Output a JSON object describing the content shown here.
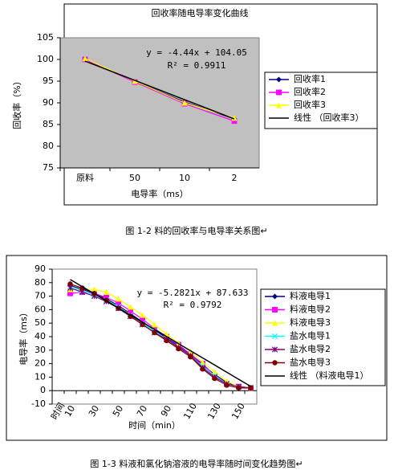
{
  "chart_data": [
    {
      "type": "line",
      "title": "回收率随电导率变化曲线",
      "xlabel": "电导率（ms）",
      "ylabel": "回收率（%）",
      "categories": [
        "原料",
        "50",
        "10",
        "2"
      ],
      "series": [
        {
          "name": "回收率1",
          "color": "#000080",
          "marker": "diamond",
          "values": [
            100,
            95,
            90.2,
            86.3
          ]
        },
        {
          "name": "回收率2",
          "color": "#ff00ff",
          "marker": "square",
          "values": [
            100,
            94.8,
            89.8,
            85.8
          ]
        },
        {
          "name": "回收率3",
          "color": "#ffff00",
          "marker": "triangle",
          "values": [
            100.2,
            95,
            90,
            86.5
          ]
        },
        {
          "name": "线性 （回收率3）",
          "color": "#000000",
          "marker": "none",
          "values": [
            99.61,
            95.17,
            90.73,
            86.29
          ]
        }
      ],
      "annotations": [
        "y = -4.44x + 104.05",
        "R² = 0.9911"
      ],
      "ylim": [
        75,
        105
      ],
      "yticks": [
        75,
        80,
        85,
        90,
        95,
        100,
        105
      ],
      "grid": false,
      "plot_background": "#c0c0c0"
    },
    {
      "type": "line",
      "xlabel": "时间（min）",
      "ylabel": "电导率（ms）",
      "categories": [
        "时间",
        "10",
        null,
        "30",
        null,
        "50",
        null,
        "70",
        null,
        "90",
        null,
        "110",
        null,
        "130",
        null,
        "150",
        null
      ],
      "series": [
        {
          "name": "料液电导1",
          "color": "#000080",
          "marker": "diamond",
          "values": [
            null,
            78,
            75,
            72,
            68,
            63,
            57,
            51,
            45,
            39,
            33,
            27,
            19,
            12,
            6,
            3,
            2
          ]
        },
        {
          "name": "料液电导2",
          "color": "#ff00ff",
          "marker": "square",
          "values": [
            null,
            72,
            73,
            72,
            69,
            65,
            59,
            53,
            46,
            40,
            34,
            27,
            20,
            11,
            5,
            3,
            2
          ]
        },
        {
          "name": "料液电导3",
          "color": "#ffff00",
          "marker": "triangle",
          "values": [
            null,
            75,
            75,
            75,
            73,
            68,
            62,
            56,
            49,
            42,
            35,
            29,
            21,
            14,
            7,
            3,
            2
          ]
        },
        {
          "name": "盐水电导1",
          "color": "#00ffff",
          "marker": "x",
          "values": [
            null,
            77,
            74,
            71,
            67,
            62,
            56,
            50,
            44,
            38,
            32,
            26,
            18,
            11,
            5,
            3,
            2
          ]
        },
        {
          "name": "盐水电导2",
          "color": "#800080",
          "marker": "star",
          "values": [
            null,
            76,
            73,
            70,
            66,
            61,
            55,
            49,
            43,
            38,
            32,
            26,
            17,
            10,
            5,
            3,
            2
          ]
        },
        {
          "name": "盐水电导3",
          "color": "#800000",
          "marker": "circle",
          "values": [
            null,
            79,
            76,
            72,
            67,
            61,
            55,
            49,
            43,
            37,
            31,
            25,
            16,
            9,
            4,
            2,
            2
          ]
        },
        {
          "name": "线性 （料液电导1）",
          "color": "#000000",
          "marker": "none",
          "values": [
            null,
            82.35,
            77.07,
            71.79,
            66.5,
            61.22,
            55.94,
            50.66,
            45.38,
            40.09,
            34.81,
            29.53,
            24.25,
            18.97,
            13.68,
            8.4,
            3.12
          ]
        }
      ],
      "annotations": [
        "y = -5.2821x + 87.633",
        "R² = 0.9792"
      ],
      "ylim": [
        -10,
        90
      ],
      "yticks": [
        -10,
        0,
        10,
        20,
        30,
        40,
        50,
        60,
        70,
        80,
        90
      ],
      "grid": false,
      "plot_background": "#ffffff"
    }
  ],
  "captions": [
    "图 1-2 料的回收率与电导率关系图↵",
    "图 1-3 料液和氯化钠溶液的电导率随时间变化趋势图↵"
  ]
}
